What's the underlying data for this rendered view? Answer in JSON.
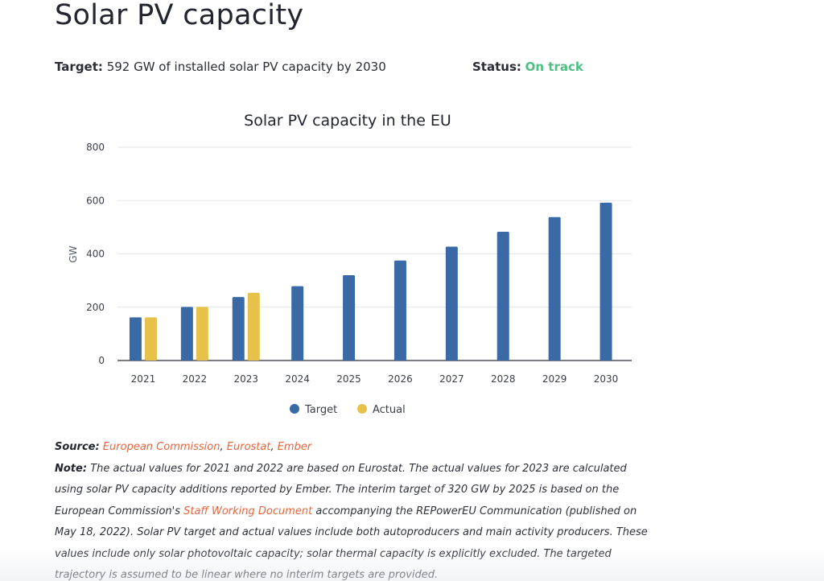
{
  "page": {
    "title": "Solar PV capacity",
    "target_label": "Target:",
    "target_text": "592 GW of installed solar PV capacity by 2030",
    "status_label": "Status:",
    "status_value": "On track"
  },
  "colors": {
    "target": "#3a6aa6",
    "actual": "#e6c24a",
    "status": "#4fc084",
    "link": "#e8663d"
  },
  "chart_data": {
    "type": "bar",
    "title": "Solar PV capacity in the EU",
    "xlabel": "",
    "ylabel": "GW",
    "ylim": [
      0,
      800
    ],
    "yticks": [
      0,
      200,
      400,
      600,
      800
    ],
    "grid": true,
    "legend_position": "bottom-center",
    "categories": [
      "2021",
      "2022",
      "2023",
      "2024",
      "2025",
      "2026",
      "2027",
      "2028",
      "2029",
      "2030"
    ],
    "series": [
      {
        "name": "Target",
        "color": "#3a6aa6",
        "values": [
          162,
          201,
          238,
          279,
          320,
          375,
          427,
          483,
          538,
          592
        ]
      },
      {
        "name": "Actual",
        "color": "#e6c24a",
        "values": [
          162,
          201,
          254,
          null,
          null,
          null,
          null,
          null,
          null,
          null
        ]
      }
    ]
  },
  "notes": {
    "source_label": "Source:",
    "sources": [
      "European Commission",
      "Eurostat",
      "Ember"
    ],
    "sep": ", ",
    "note_label": "Note:",
    "note_part1": "The actual values for 2021 and 2022 are based on Eurostat. The actual values for 2023 are calculated using solar PV capacity additions reported by Ember. The interim target of 320 GW by 2025 is based on the European Commission's",
    "note_link": "Staff Working Document",
    "note_part2": "accompanying the REPowerEU Communication (published on May 18, 2022). Solar PV target and actual values include both autoproducers and main activity producers. These values include only solar photovoltaic capacity; solar thermal capacity is explicitly excluded. The targeted trajectory is assumed to be linear where no interim targets are provided."
  }
}
